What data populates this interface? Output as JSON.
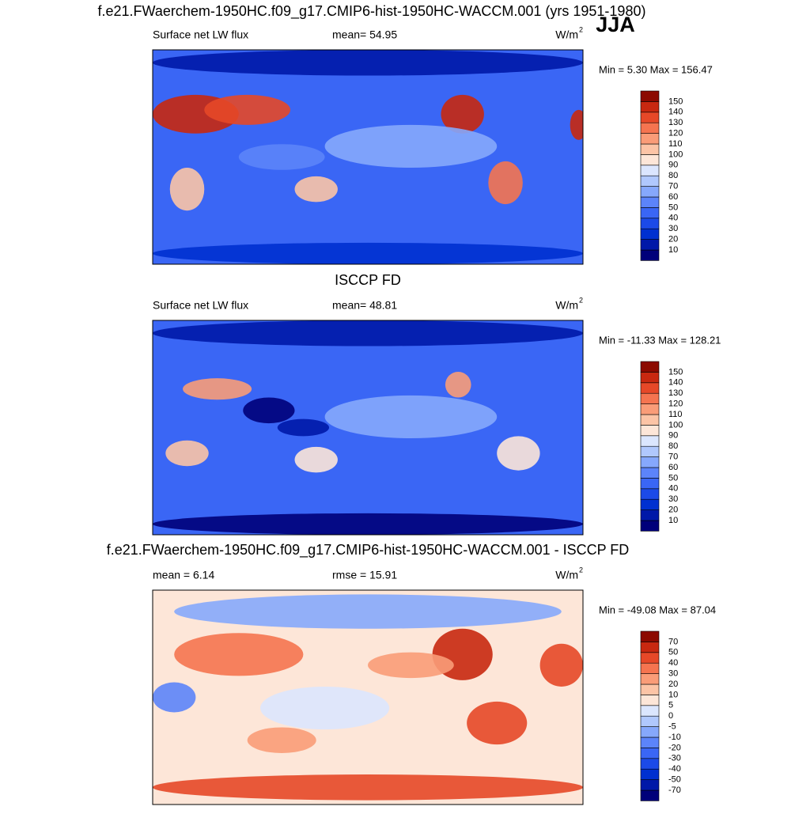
{
  "title": "f.e21.FWaerchem-1950HC.f09_g17.CMIP6-hist-1950HC-WACCM.001 (yrs 1951-1980)",
  "season": "JJA",
  "panels": [
    {
      "left": "Surface net LW flux",
      "center": "mean=  54.95",
      "units": "W/m",
      "units_sup": "2",
      "minmax": "Min =   5.30 Max = 156.47",
      "levels": [
        10,
        20,
        30,
        40,
        50,
        60,
        70,
        80,
        90,
        100,
        110,
        120,
        130,
        140,
        150
      ],
      "colors": [
        "#00007a",
        "#0018a8",
        "#0030d0",
        "#1c4ae8",
        "#3a66f5",
        "#5c84fa",
        "#86a8fc",
        "#b0c8fd",
        "#dbe6fe",
        "#fde6d8",
        "#fcc4a6",
        "#fa9c78",
        "#f57450",
        "#e64828",
        "#c82810",
        "#8c0a00"
      ]
    },
    {
      "title": "ISCCP FD",
      "left": "Surface net LW flux",
      "center": "mean=  48.81",
      "units": "W/m",
      "units_sup": "2",
      "minmax": "Min = -11.33 Max = 128.21",
      "levels": [
        10,
        20,
        30,
        40,
        50,
        60,
        70,
        80,
        90,
        100,
        110,
        120,
        130,
        140,
        150
      ],
      "colors": [
        "#00007a",
        "#0018a8",
        "#0030d0",
        "#1c4ae8",
        "#3a66f5",
        "#5c84fa",
        "#86a8fc",
        "#b0c8fd",
        "#dbe6fe",
        "#fde6d8",
        "#fcc4a6",
        "#fa9c78",
        "#f57450",
        "#e64828",
        "#c82810",
        "#8c0a00"
      ]
    },
    {
      "title": "f.e21.FWaerchem-1950HC.f09_g17.CMIP6-hist-1950HC-WACCM.001 - ISCCP FD",
      "left": "mean =   6.14",
      "center": "rmse =  15.91",
      "units": "W/m",
      "units_sup": "2",
      "minmax": "Min = -49.08 Max =  87.04",
      "levels": [
        -70,
        -50,
        -40,
        -30,
        -20,
        -10,
        -5,
        0,
        5,
        10,
        20,
        30,
        40,
        50,
        70
      ],
      "colors": [
        "#00007a",
        "#0018a8",
        "#0030d0",
        "#1c4ae8",
        "#3a66f5",
        "#5c84fa",
        "#86a8fc",
        "#b0c8fd",
        "#dbe6fe",
        "#fde6d8",
        "#fcc4a6",
        "#fa9c78",
        "#f57450",
        "#e64828",
        "#c82810",
        "#8c0a00"
      ]
    }
  ]
}
